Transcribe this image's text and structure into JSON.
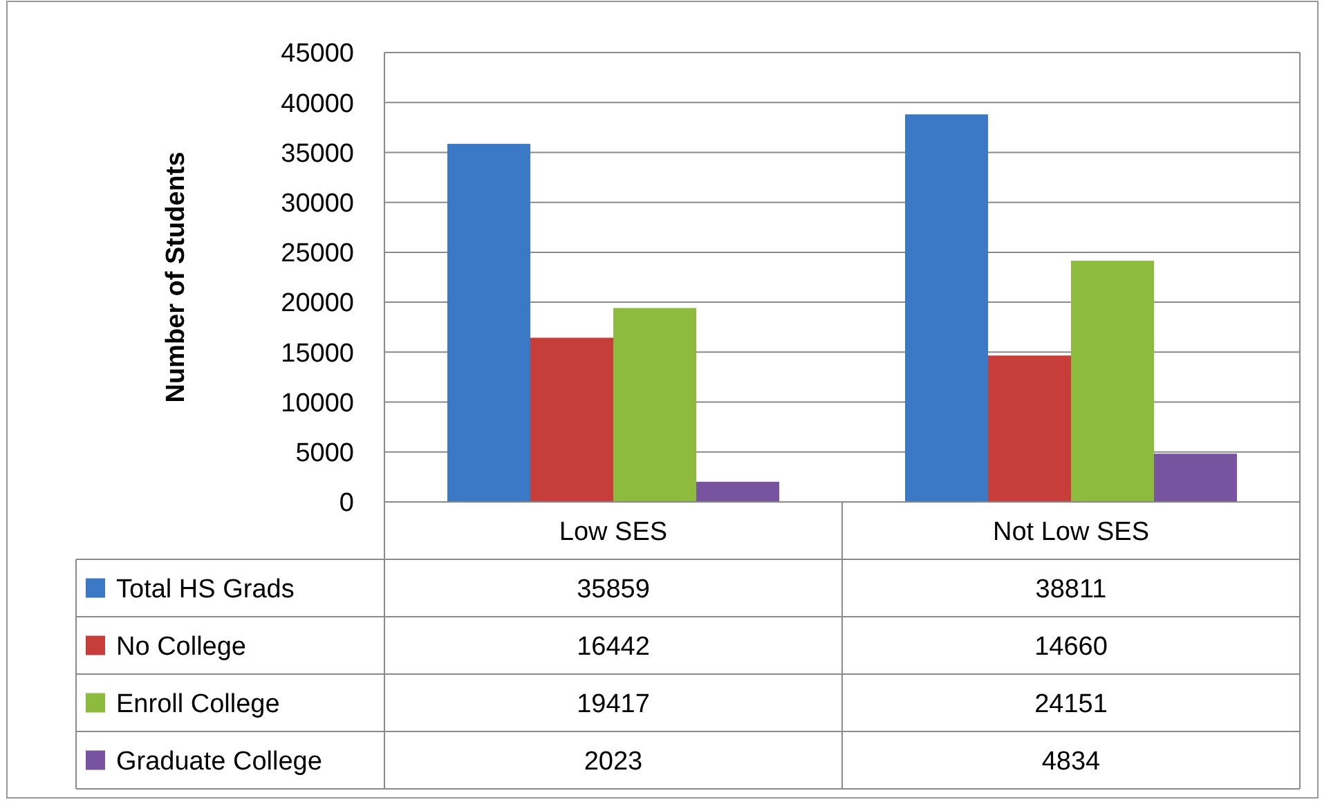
{
  "chart_data": {
    "type": "bar",
    "ylabel": "Number of Students",
    "categories": [
      "Low SES",
      "Not Low SES"
    ],
    "series": [
      {
        "name": "Total HS Grads",
        "color": "#3b78c6",
        "values": [
          35859,
          38811
        ]
      },
      {
        "name": "No College",
        "color": "#c73d3a",
        "values": [
          16442,
          14660
        ]
      },
      {
        "name": "Enroll College",
        "color": "#8dbb3e",
        "values": [
          19417,
          24151
        ]
      },
      {
        "name": "Graduate College",
        "color": "#7853a0",
        "values": [
          2023,
          4834
        ]
      }
    ],
    "ylim": [
      0,
      45000
    ],
    "yticks": [
      0,
      5000,
      10000,
      15000,
      20000,
      25000,
      30000,
      35000,
      40000,
      45000
    ],
    "grid": "y",
    "legend": "bottom",
    "data_labels": true
  }
}
